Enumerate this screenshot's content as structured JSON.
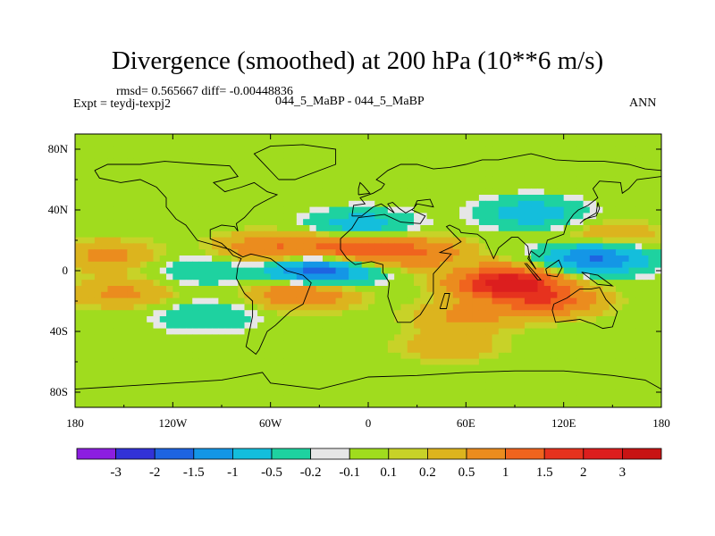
{
  "header": {
    "title": "Divergence (smoothed) at 200 hPa (10**6 m/s)",
    "stats": "rmsd= 0.565667  diff= -0.00448836",
    "experiment": "Expt = teydj-texpj2",
    "case": "044_5_MaBP - 044_5_MaBP",
    "season": "ANN"
  },
  "chart_data": {
    "type": "heatmap",
    "title": "Divergence (smoothed) at 200 hPa (10**6 m/s)",
    "projection": "cylindrical equidistant",
    "xlim": [
      -180,
      180
    ],
    "ylim": [
      -90,
      90
    ],
    "x_ticks": [
      {
        "value": -180,
        "label": "180"
      },
      {
        "value": -120,
        "label": "120W"
      },
      {
        "value": -60,
        "label": "60W"
      },
      {
        "value": 0,
        "label": "0"
      },
      {
        "value": 60,
        "label": "60E"
      },
      {
        "value": 120,
        "label": "120E"
      },
      {
        "value": 180,
        "label": "180"
      }
    ],
    "y_ticks": [
      {
        "value": 80,
        "label": "80N"
      },
      {
        "value": 40,
        "label": "40N"
      },
      {
        "value": 0,
        "label": "0"
      },
      {
        "value": -40,
        "label": "40S"
      },
      {
        "value": -80,
        "label": "80S"
      }
    ],
    "colorbar": {
      "levels": [
        "-3",
        "-2",
        "-1.5",
        "-1",
        "-0.5",
        "-0.2",
        "-0.1",
        "0.1",
        "0.2",
        "0.5",
        "1",
        "1.5",
        "2",
        "3"
      ],
      "colors": [
        "#8c1ee0",
        "#3232d7",
        "#1e64e1",
        "#1496e6",
        "#14bedc",
        "#1ed2a0",
        "#e6e6e6",
        "#a0dc1e",
        "#c8d228",
        "#dcb41e",
        "#eb8c1e",
        "#f0641e",
        "#e6321e",
        "#dc1e1e",
        "#c81414"
      ]
    },
    "field_features": [
      {
        "lon": -5,
        "lat": 30,
        "value": -0.8,
        "desc": "negative band north Atlantic/Africa"
      },
      {
        "lon": 100,
        "lat": 38,
        "value": -0.8
      },
      {
        "lon": -160,
        "lat": 10,
        "value": 0.6,
        "desc": "positive band tropical Pacific"
      },
      {
        "lon": -60,
        "lat": 14,
        "value": 1.0
      },
      {
        "lon": -10,
        "lat": 14,
        "value": 1.3
      },
      {
        "lon": 30,
        "lat": 12,
        "value": 0.9
      },
      {
        "lon": -30,
        "lat": 0,
        "value": -1.9,
        "desc": "equatorial Atlantic minimum"
      },
      {
        "lon": -100,
        "lat": 0,
        "value": -0.5
      },
      {
        "lon": 140,
        "lat": 8,
        "value": -1.6,
        "desc": "western Pacific minimum"
      },
      {
        "lon": 85,
        "lat": -8,
        "value": 2.4,
        "desc": "Indian Ocean maximum"
      },
      {
        "lon": 110,
        "lat": -20,
        "value": 1.2
      },
      {
        "lon": -40,
        "lat": -15,
        "value": 1.1
      },
      {
        "lon": -150,
        "lat": -15,
        "value": 0.6
      },
      {
        "lon": 60,
        "lat": -30,
        "value": 0.6
      },
      {
        "lon": -100,
        "lat": -30,
        "value": -0.5
      },
      {
        "lon": 50,
        "lat": -50,
        "value": 0.4
      },
      {
        "lon": 150,
        "lat": 22,
        "value": 0.5
      }
    ]
  }
}
